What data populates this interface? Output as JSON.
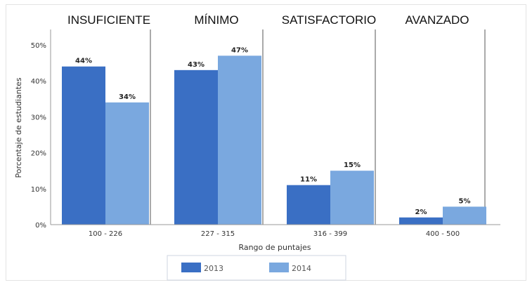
{
  "chart_data": {
    "type": "bar",
    "groups": [
      "INSUFICIENTE",
      "MÍNIMO",
      "SATISFACTORIO",
      "AVANZADO"
    ],
    "categories": [
      "100 - 226",
      "227 - 315",
      "316 - 399",
      "400 - 500"
    ],
    "series": [
      {
        "name": "2013",
        "values": [
          44,
          43,
          11,
          2
        ],
        "labels": [
          "44%",
          "43%",
          "11%",
          "2%"
        ],
        "color": "#3a6fc4"
      },
      {
        "name": "2014",
        "values": [
          34,
          47,
          15,
          5
        ],
        "labels": [
          "34%",
          "47%",
          "15%",
          "5%"
        ],
        "color": "#7aa8df"
      }
    ],
    "yticks": [
      "0%",
      "10%",
      "20%",
      "30%",
      "40%",
      "50%"
    ],
    "ylim": [
      0,
      50
    ],
    "xlabel": "Rango de puntajes",
    "ylabel": "Porcentaje de estudiantes",
    "legend": "bottom",
    "grid": false
  }
}
